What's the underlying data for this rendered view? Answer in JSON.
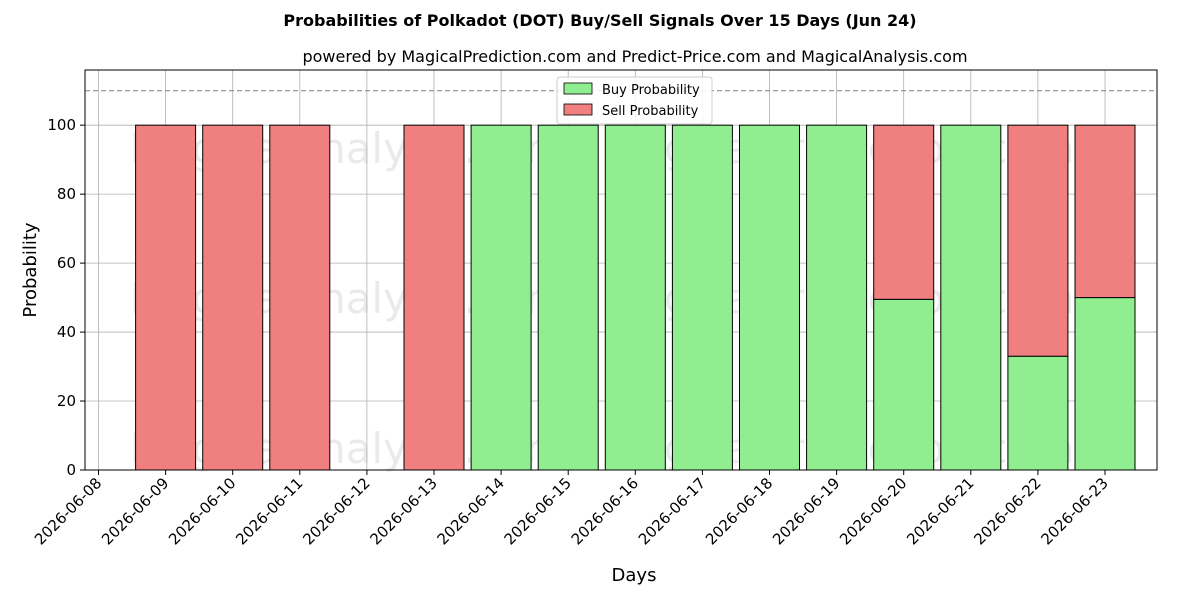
{
  "chart_data": {
    "type": "bar",
    "stacked": true,
    "title": "Probabilities of Polkadot (DOT) Buy/Sell Signals Over 15 Days (Jun 24)",
    "subtitle": "powered by MagicalPrediction.com and Predict-Price.com and MagicalAnalysis.com",
    "xlabel": "Days",
    "ylabel": "Probability",
    "ylim": [
      0,
      116
    ],
    "yticks": [
      0,
      20,
      40,
      60,
      80,
      100
    ],
    "xtick_labels": [
      "2026-06-08",
      "2026-06-09",
      "2026-06-10",
      "2026-06-11",
      "2026-06-12",
      "2026-06-13",
      "2026-06-14",
      "2026-06-15",
      "2026-06-16",
      "2026-06-17",
      "2026-06-18",
      "2026-06-19",
      "2026-06-20",
      "2026-06-21",
      "2026-06-22",
      "2026-06-23"
    ],
    "categories": [
      "2026-06-09",
      "2026-06-10",
      "2026-06-11",
      "2026-06-13",
      "2026-06-14",
      "2026-06-15",
      "2026-06-16",
      "2026-06-17",
      "2026-06-18",
      "2026-06-19",
      "2026-06-20",
      "2026-06-21",
      "2026-06-22",
      "2026-06-23"
    ],
    "series": [
      {
        "name": "Buy Probability",
        "color": "#90ee90",
        "values": [
          0,
          0,
          0,
          0,
          100,
          100,
          100,
          100,
          100,
          100,
          49.5,
          100,
          33,
          50
        ]
      },
      {
        "name": "Sell Probability",
        "color": "#f08080",
        "values": [
          100,
          100,
          100,
          100,
          0,
          0,
          0,
          0,
          0,
          0,
          50.5,
          0,
          67,
          50
        ]
      }
    ],
    "reference_line": {
      "y": 110,
      "style": "dashed",
      "color": "#808080"
    },
    "grid": true,
    "legend": "top-center",
    "watermarks": [
      "MagicalAnalysis.com",
      "MagicalPrediction.com"
    ]
  }
}
